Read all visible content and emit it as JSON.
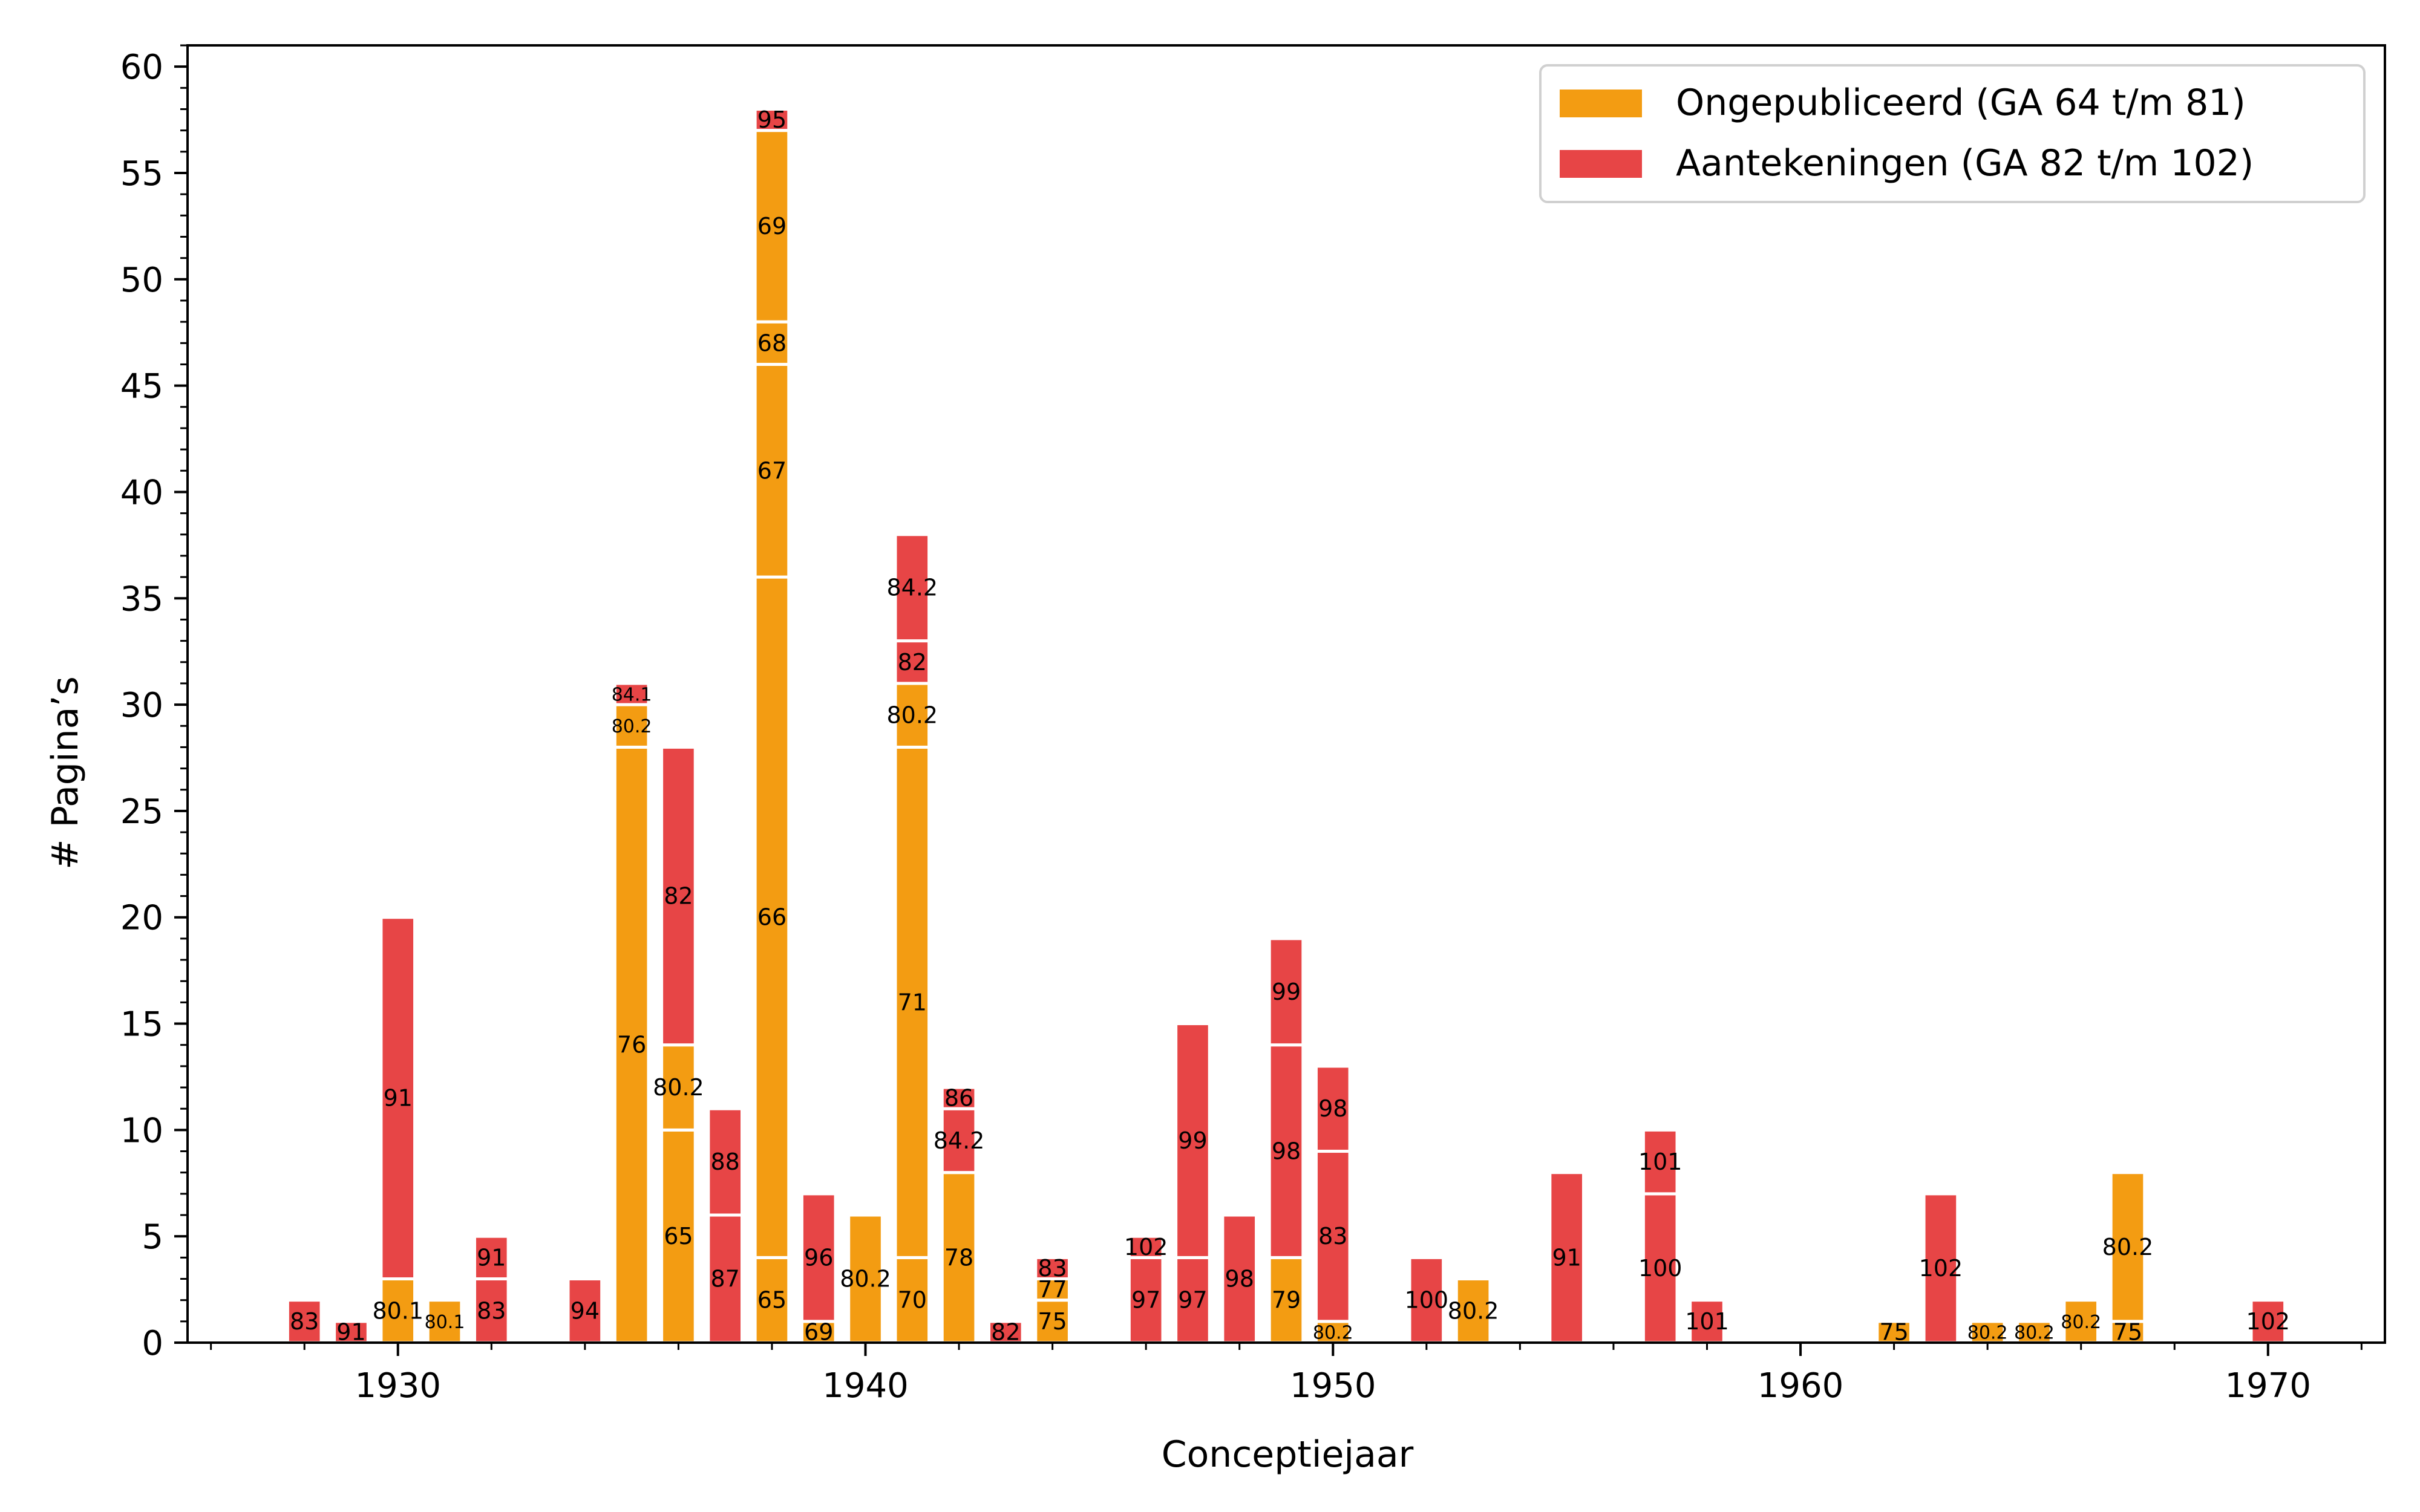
{
  "chart_data": {
    "type": "bar",
    "stacked": true,
    "xlabel": "Conceptiejaar",
    "ylabel": "# Pagina’s",
    "xlim": [
      1925.5,
      1972.5
    ],
    "ylim": [
      0,
      61
    ],
    "xticks": [
      "1930",
      "1940",
      "1950",
      "1960",
      "1970"
    ],
    "yticks": [
      "0",
      "5",
      "10",
      "15",
      "20",
      "25",
      "30",
      "35",
      "40",
      "45",
      "50",
      "55",
      "60"
    ],
    "legend_position": "top-right",
    "series": [
      {
        "name": "Ongepubliceerd (GA 64 t/m 81)",
        "color": "#f39c12"
      },
      {
        "name": "Aantekeningen (GA 82 t/m 102)",
        "color": "#e74546"
      }
    ],
    "bars": [
      {
        "year": 1928,
        "segments": [
          {
            "series": 1,
            "value": 2,
            "label": "83"
          }
        ]
      },
      {
        "year": 1929,
        "segments": [
          {
            "series": 1,
            "value": 1,
            "label": "91"
          }
        ]
      },
      {
        "year": 1930,
        "segments": [
          {
            "series": 0,
            "value": 3,
            "label": "80.1"
          },
          {
            "series": 1,
            "value": 17,
            "label": "91"
          }
        ]
      },
      {
        "year": 1931,
        "segments": [
          {
            "series": 0,
            "value": 2,
            "label": "80.1"
          }
        ]
      },
      {
        "year": 1932,
        "segments": [
          {
            "series": 1,
            "value": 3,
            "label": "83"
          },
          {
            "series": 1,
            "value": 2,
            "label": "91"
          }
        ]
      },
      {
        "year": 1934,
        "segments": [
          {
            "series": 1,
            "value": 3,
            "label": "94"
          }
        ]
      },
      {
        "year": 1935,
        "segments": [
          {
            "series": 0,
            "value": 28,
            "label": "76"
          },
          {
            "series": 0,
            "value": 2,
            "label": "80.2"
          },
          {
            "series": 1,
            "value": 1,
            "label": "84.1"
          }
        ]
      },
      {
        "year": 1936,
        "segments": [
          {
            "series": 0,
            "value": 10,
            "label": "65"
          },
          {
            "series": 0,
            "value": 4,
            "label": "80.2"
          },
          {
            "series": 1,
            "value": 14,
            "label": "82"
          }
        ]
      },
      {
        "year": 1937,
        "segments": [
          {
            "series": 1,
            "value": 6,
            "label": "87"
          },
          {
            "series": 1,
            "value": 5,
            "label": "88"
          }
        ]
      },
      {
        "year": 1938,
        "segments": [
          {
            "series": 0,
            "value": 4,
            "label": "65"
          },
          {
            "series": 0,
            "value": 32,
            "label": "66"
          },
          {
            "series": 0,
            "value": 10,
            "label": "67"
          },
          {
            "series": 0,
            "value": 2,
            "label": "68"
          },
          {
            "series": 0,
            "value": 9,
            "label": "69"
          },
          {
            "series": 1,
            "value": 1,
            "label": "95"
          }
        ]
      },
      {
        "year": 1939,
        "segments": [
          {
            "series": 0,
            "value": 1,
            "label": "69"
          },
          {
            "series": 1,
            "value": 6,
            "label": "96"
          }
        ]
      },
      {
        "year": 1940,
        "segments": [
          {
            "series": 0,
            "value": 6,
            "label": "80.2"
          }
        ]
      },
      {
        "year": 1941,
        "segments": [
          {
            "series": 0,
            "value": 4,
            "label": "70"
          },
          {
            "series": 0,
            "value": 24,
            "label": "71"
          },
          {
            "series": 0,
            "value": 3,
            "label": "80.2"
          },
          {
            "series": 1,
            "value": 2,
            "label": "82"
          },
          {
            "series": 1,
            "value": 5,
            "label": "84.2"
          }
        ]
      },
      {
        "year": 1942,
        "segments": [
          {
            "series": 0,
            "value": 8,
            "label": "78"
          },
          {
            "series": 1,
            "value": 3,
            "label": "84.2"
          },
          {
            "series": 1,
            "value": 1,
            "label": "86"
          }
        ]
      },
      {
        "year": 1943,
        "segments": [
          {
            "series": 1,
            "value": 1,
            "label": "82"
          }
        ]
      },
      {
        "year": 1944,
        "segments": [
          {
            "series": 0,
            "value": 2,
            "label": "75"
          },
          {
            "series": 0,
            "value": 1,
            "label": "77"
          },
          {
            "series": 1,
            "value": 1,
            "label": "83"
          }
        ]
      },
      {
        "year": 1946,
        "segments": [
          {
            "series": 1,
            "value": 4,
            "label": "97"
          },
          {
            "series": 1,
            "value": 1,
            "label": "102"
          }
        ]
      },
      {
        "year": 1947,
        "segments": [
          {
            "series": 1,
            "value": 4,
            "label": "97"
          },
          {
            "series": 1,
            "value": 11,
            "label": "99"
          }
        ]
      },
      {
        "year": 1948,
        "segments": [
          {
            "series": 1,
            "value": 6,
            "label": "98"
          }
        ]
      },
      {
        "year": 1949,
        "segments": [
          {
            "series": 0,
            "value": 4,
            "label": "79"
          },
          {
            "series": 1,
            "value": 10,
            "label": "98"
          },
          {
            "series": 1,
            "value": 5,
            "label": "99"
          }
        ]
      },
      {
        "year": 1950,
        "segments": [
          {
            "series": 0,
            "value": 1,
            "label": "80.2"
          },
          {
            "series": 1,
            "value": 8,
            "label": "83"
          },
          {
            "series": 1,
            "value": 4,
            "label": "98"
          }
        ]
      },
      {
        "year": 1952,
        "segments": [
          {
            "series": 1,
            "value": 4,
            "label": "100"
          }
        ]
      },
      {
        "year": 1953,
        "segments": [
          {
            "series": 0,
            "value": 3,
            "label": "80.2"
          }
        ]
      },
      {
        "year": 1955,
        "segments": [
          {
            "series": 1,
            "value": 8,
            "label": "91"
          }
        ]
      },
      {
        "year": 1957,
        "segments": [
          {
            "series": 1,
            "value": 7,
            "label": "100"
          },
          {
            "series": 1,
            "value": 3,
            "label": "101"
          }
        ]
      },
      {
        "year": 1958,
        "segments": [
          {
            "series": 1,
            "value": 2,
            "label": "101"
          }
        ]
      },
      {
        "year": 1962,
        "segments": [
          {
            "series": 0,
            "value": 1,
            "label": "75"
          }
        ]
      },
      {
        "year": 1963,
        "segments": [
          {
            "series": 1,
            "value": 7,
            "label": "102"
          }
        ]
      },
      {
        "year": 1964,
        "segments": [
          {
            "series": 0,
            "value": 1,
            "label": "80.2"
          }
        ]
      },
      {
        "year": 1965,
        "segments": [
          {
            "series": 0,
            "value": 1,
            "label": "80.2"
          }
        ]
      },
      {
        "year": 1966,
        "segments": [
          {
            "series": 0,
            "value": 2,
            "label": "80.2"
          }
        ]
      },
      {
        "year": 1967,
        "segments": [
          {
            "series": 0,
            "value": 1,
            "label": "75"
          },
          {
            "series": 0,
            "value": 7,
            "label": "80.2"
          }
        ]
      },
      {
        "year": 1970,
        "segments": [
          {
            "series": 1,
            "value": 2,
            "label": "102"
          }
        ]
      }
    ]
  }
}
